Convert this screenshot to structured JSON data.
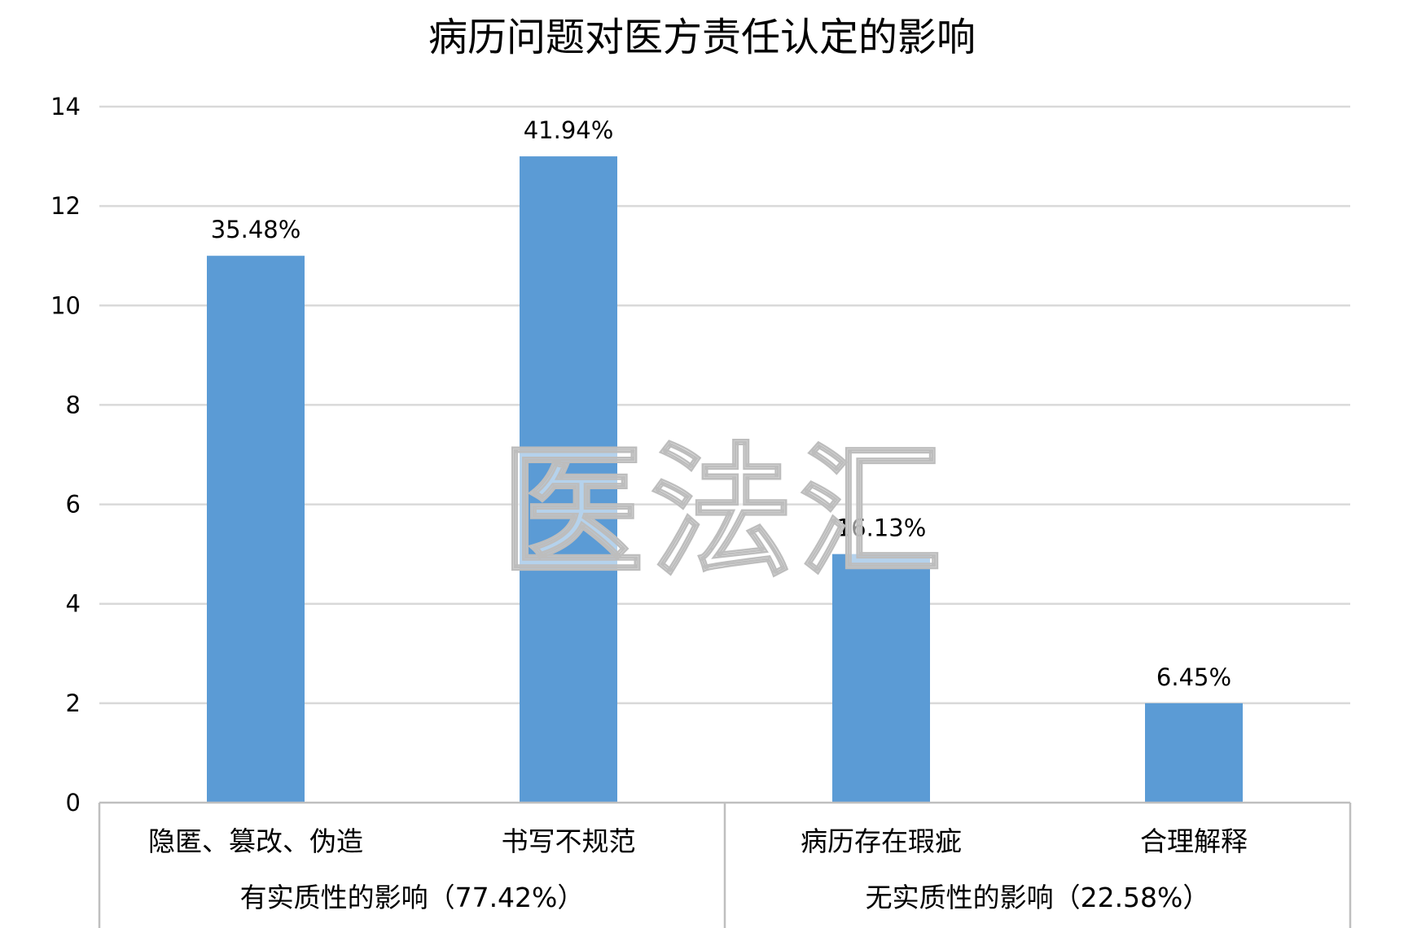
{
  "chart_data": {
    "type": "bar",
    "title": "病历问题对医方责任认定的影响",
    "categories": [
      "隐匿、篡改、伪造",
      "书写不规范",
      "病历存在瑕疵",
      "合理解释"
    ],
    "values": [
      11,
      13,
      5,
      2
    ],
    "data_labels": [
      "35.48%",
      "41.94%",
      "16.13%",
      "6.45%"
    ],
    "groups": [
      {
        "label": "有实质性的影响（77.42%）",
        "categories": [
          0,
          1
        ]
      },
      {
        "label": "无实质性的影响（22.58%）",
        "categories": [
          2,
          3
        ]
      }
    ],
    "ylim": [
      0,
      14
    ],
    "yticks": [
      0,
      2,
      4,
      6,
      8,
      10,
      12,
      14
    ],
    "grid": true,
    "legend": "none",
    "colors": {
      "bar": "#5b9bd5",
      "grid": "#d9d9d9",
      "axis": "#bfbfbf"
    }
  },
  "watermark": "医法汇"
}
